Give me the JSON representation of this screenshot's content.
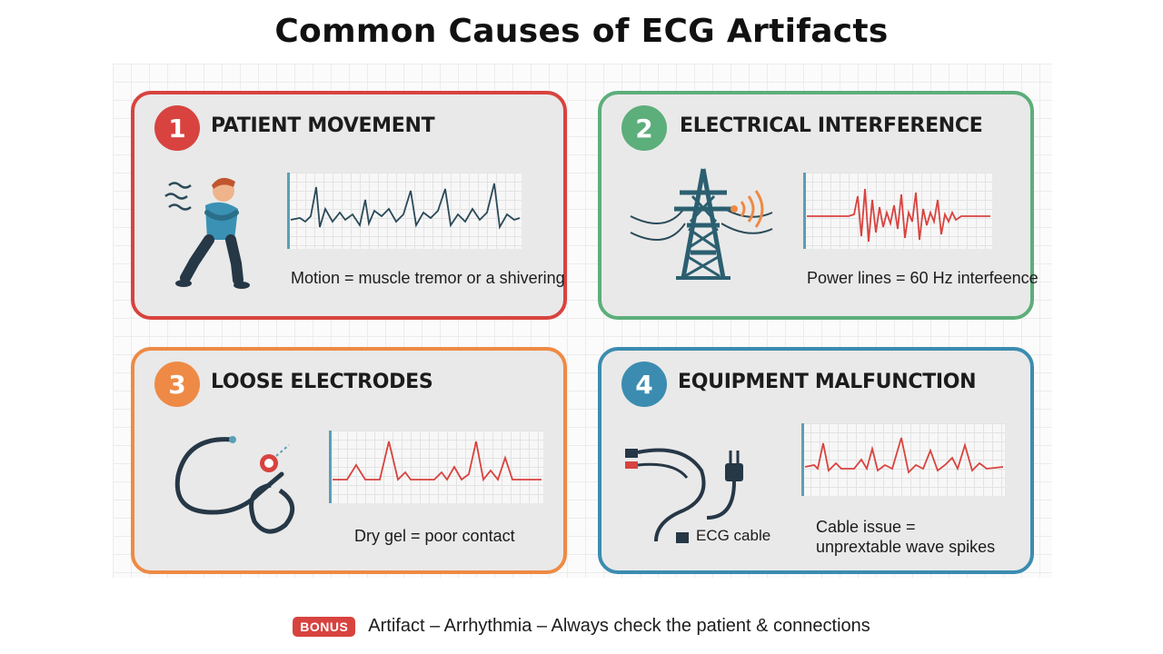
{
  "title": "Common Causes of ECG Artifacts",
  "colors": {
    "red": "#d8433f",
    "green": "#5cae7a",
    "orange": "#ee8a45",
    "blue": "#3b8cb0",
    "ecg_dark": "#2b4a58",
    "ecg_red": "#d8433f"
  },
  "cards": [
    {
      "number": "1",
      "title": "PATIENT MOVEMENT",
      "caption": "Motion = muscle tremor or a shivering",
      "icon": "shivering-person-icon"
    },
    {
      "number": "2",
      "title": "ELECTRICAL INTERFERENCE",
      "caption": "Power lines = 60 Hz interfeence",
      "icon": "power-tower-icon"
    },
    {
      "number": "3",
      "title": "LOOSE ELECTRODES",
      "caption": "Dry gel = poor contact",
      "icon": "loose-lead-wire-icon"
    },
    {
      "number": "4",
      "title": "EQUIPMENT MALFUNCTION",
      "caption_line1": "Cable issue =",
      "caption_line2": "unprextable wave spikes",
      "cable_label": "ECG cable",
      "icon": "ecg-cable-icon"
    }
  ],
  "footer": {
    "badge": "BONUS",
    "text": "Artifact – Arrhythmia – Always check the patient & connections"
  }
}
